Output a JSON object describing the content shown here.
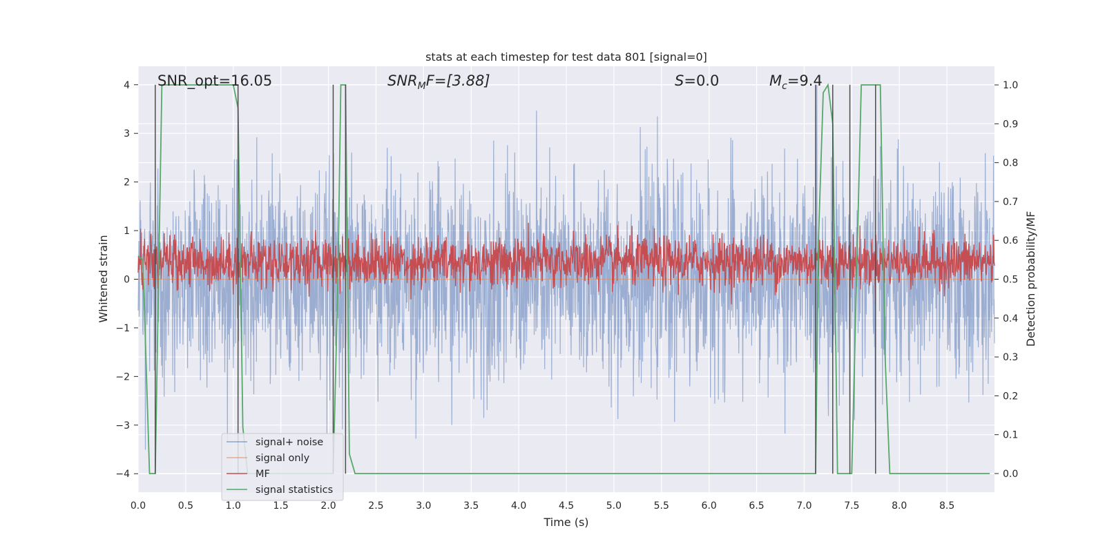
{
  "chart_data": {
    "type": "line",
    "title": "stats at each timestep for test data 801 [signal=0]",
    "xlabel": "Time (s)",
    "ylabel": "Whitened strain",
    "y2label": "Detection probability/MF",
    "xlim": [
      0.0,
      9.0
    ],
    "ylim": [
      -4.38,
      4.38
    ],
    "y2lim": [
      -0.048,
      1.048
    ],
    "xticks": [
      "0.0",
      "0.5",
      "1.0",
      "1.5",
      "2.0",
      "2.5",
      "3.0",
      "3.5",
      "4.0",
      "4.5",
      "5.0",
      "5.5",
      "6.0",
      "6.5",
      "7.0",
      "7.5",
      "8.0",
      "8.5"
    ],
    "xtick_values": [
      0.0,
      0.5,
      1.0,
      1.5,
      2.0,
      2.5,
      3.0,
      3.5,
      4.0,
      4.5,
      5.0,
      5.5,
      6.0,
      6.5,
      7.0,
      7.5,
      8.0,
      8.5
    ],
    "yticks": [
      "4",
      "3",
      "2",
      "1",
      "0",
      "−1",
      "−2",
      "−3",
      "−4"
    ],
    "ytick_values": [
      4,
      3,
      2,
      1,
      0,
      -1,
      -2,
      -3,
      -4
    ],
    "y2ticks": [
      "1.0",
      "0.9",
      "0.8",
      "0.7",
      "0.6",
      "0.5",
      "0.4",
      "0.3",
      "0.2",
      "0.1",
      "0.0"
    ],
    "y2tick_values": [
      1.0,
      0.9,
      0.8,
      0.7,
      0.6,
      0.5,
      0.4,
      0.3,
      0.2,
      0.1,
      0.0
    ],
    "grid": true,
    "legend_position": "lower-left",
    "annotations": {
      "snr_opt": "SNR_opt=16.05",
      "snr_mf_base": "SNR",
      "snr_mf_sub": "M",
      "snr_mf_rest": "F=[3.88]",
      "s_label": "S",
      "s_value": "=0.0",
      "mc_base": "M",
      "mc_sub": "c",
      "mc_value": "=9.4"
    },
    "series": [
      {
        "name": "signal+ noise",
        "color": "#4c72b0",
        "axis": "left",
        "style": "noise",
        "amplitude_typical": 1.5,
        "amplitude_max": 4.0
      },
      {
        "name": "signal only",
        "color": "#dd8452",
        "axis": "left",
        "style": "flat",
        "values": [
          0,
          0
        ]
      },
      {
        "name": "MF",
        "color": "#c44e52",
        "axis": "right",
        "style": "noise",
        "center": 0.545,
        "amplitude_typical": 0.06
      },
      {
        "name": "signal statistics",
        "color": "#55a868",
        "axis": "right",
        "x": [
          0.0,
          0.05,
          0.12,
          0.18,
          0.25,
          0.3,
          1.0,
          1.05,
          1.1,
          1.15,
          2.05,
          2.1,
          2.13,
          2.18,
          2.22,
          2.28,
          2.35,
          7.12,
          7.15,
          7.2,
          7.25,
          7.3,
          7.35,
          7.5,
          7.55,
          7.6,
          7.8,
          7.85,
          7.9,
          8.95
        ],
        "y": [
          0.56,
          0.55,
          0.0,
          0.0,
          1.0,
          1.0,
          1.0,
          0.94,
          0.12,
          0.0,
          0.0,
          0.5,
          1.0,
          1.0,
          0.05,
          0.0,
          0.0,
          0.0,
          0.6,
          0.98,
          1.0,
          0.9,
          0.0,
          0.0,
          0.5,
          1.0,
          1.0,
          0.3,
          0.0,
          0.0
        ]
      }
    ],
    "vertical_lines_x": [
      0.18,
      1.05,
      2.05,
      2.18,
      7.12,
      7.3,
      7.48,
      7.75
    ]
  },
  "legend": {
    "entries": [
      {
        "label": "signal+ noise",
        "color": "#4c72b0"
      },
      {
        "label": "signal only",
        "color": "#dd8452"
      },
      {
        "label": "MF",
        "color": "#c44e52"
      },
      {
        "label": "signal statistics",
        "color": "#55a868"
      }
    ]
  },
  "colors": {
    "plot_background": "#eaeaf2",
    "grid": "#ffffff",
    "vline": "#4d4d4d"
  }
}
